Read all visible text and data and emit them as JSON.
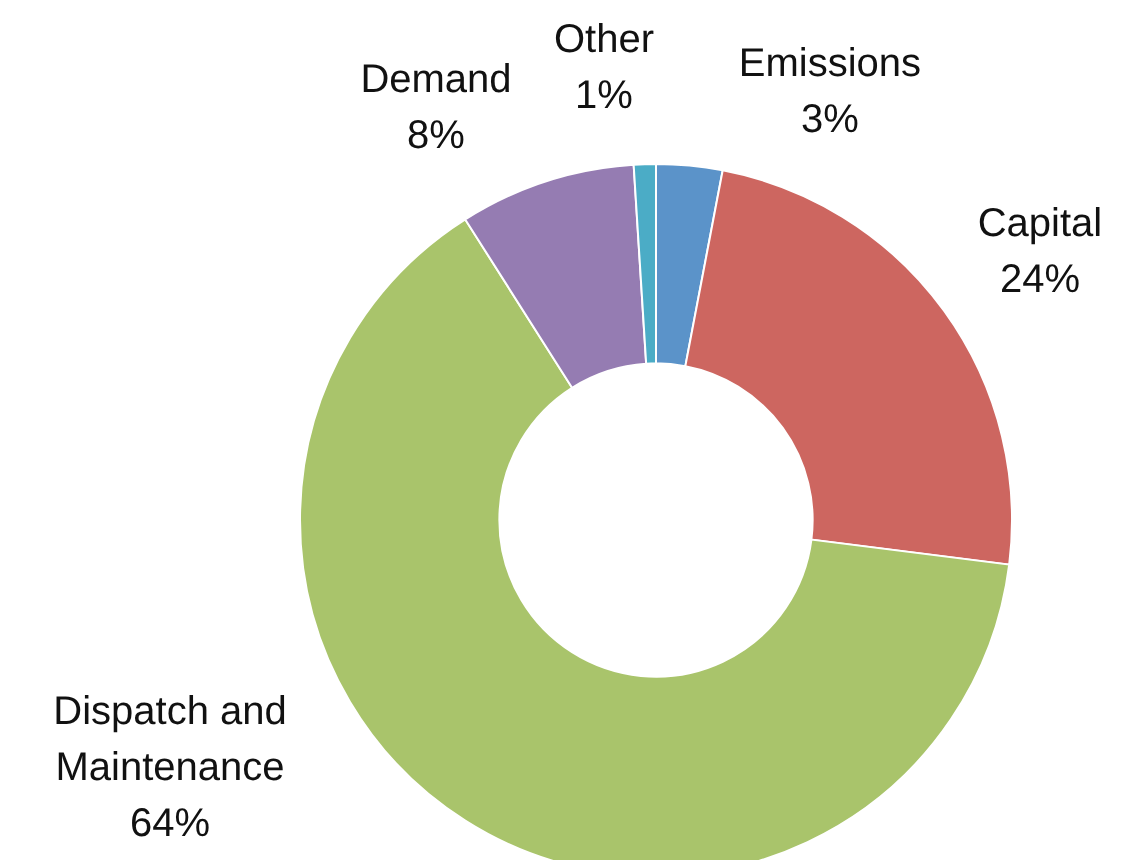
{
  "chart_data": {
    "type": "donut",
    "categories": [
      "Emissions",
      "Capital",
      "Dispatch and Maintenance",
      "Demand",
      "Other"
    ],
    "values": [
      3,
      24,
      64,
      8,
      1
    ],
    "colors": [
      "#5b93c9",
      "#cd6660",
      "#a9c46b",
      "#957cb2",
      "#4bacc6"
    ],
    "value_labels": [
      "3%",
      "24%",
      "64%",
      "8%",
      "1%"
    ],
    "legend": false
  }
}
